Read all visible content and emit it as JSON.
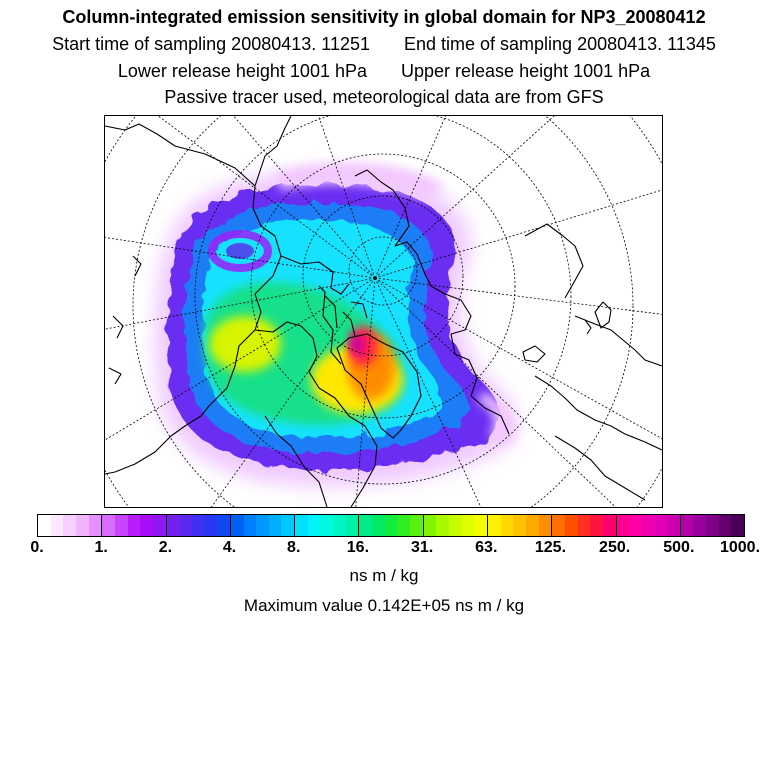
{
  "header": {
    "title": "Column-integrated emission sensitivity in global domain for NP3_20080412",
    "start_label": "Start time of sampling 20080413. 11251",
    "end_label": "End time of sampling 20080413. 11345",
    "lower_label": "Lower release height 1001 hPa",
    "upper_label": "Upper release height 1001 hPa",
    "tracer_note": "Passive tracer used, meteorological data are from GFS"
  },
  "map": {
    "projection": "polar stereographic, North Pole centered",
    "field": "column-integrated emission sensitivity"
  },
  "colorbar": {
    "tick_labels": [
      "0.",
      "1.",
      "2.",
      "4.",
      "8.",
      "16.",
      "31.",
      "63.",
      "125.",
      "250.",
      "500.",
      "1000."
    ],
    "units": "ns m / kg",
    "colors": [
      "#ffffff",
      "#fde8ff",
      "#f8d0ff",
      "#f2b3ff",
      "#e690ff",
      "#d86cff",
      "#c845ff",
      "#b81dff",
      "#a70df9",
      "#8f18f2",
      "#7520ef",
      "#5a28ee",
      "#4030f2",
      "#2838f2",
      "#1048f0",
      "#0062f5",
      "#0080ff",
      "#0098ff",
      "#00b0ff",
      "#00c8ff",
      "#00e0ff",
      "#00f4f8",
      "#00f8e0",
      "#00f4c4",
      "#00f0a8",
      "#00ec88",
      "#00ea66",
      "#10ec40",
      "#30ee20",
      "#58f010",
      "#80f400",
      "#a8f800",
      "#c8fa00",
      "#e0fc00",
      "#f4fc00",
      "#ffef00",
      "#ffd800",
      "#ffc200",
      "#ffa800",
      "#ff8e00",
      "#ff7000",
      "#ff5000",
      "#ff3020",
      "#ff1440",
      "#ff0070",
      "#ff0090",
      "#ff00a8",
      "#f000b0",
      "#e000b8",
      "#cc00b0",
      "#b400a8",
      "#9a00a0",
      "#80008a",
      "#640070",
      "#4a0058"
    ]
  },
  "footer": {
    "max_value": "Maximum value  0.142E+05 ns m / kg"
  }
}
